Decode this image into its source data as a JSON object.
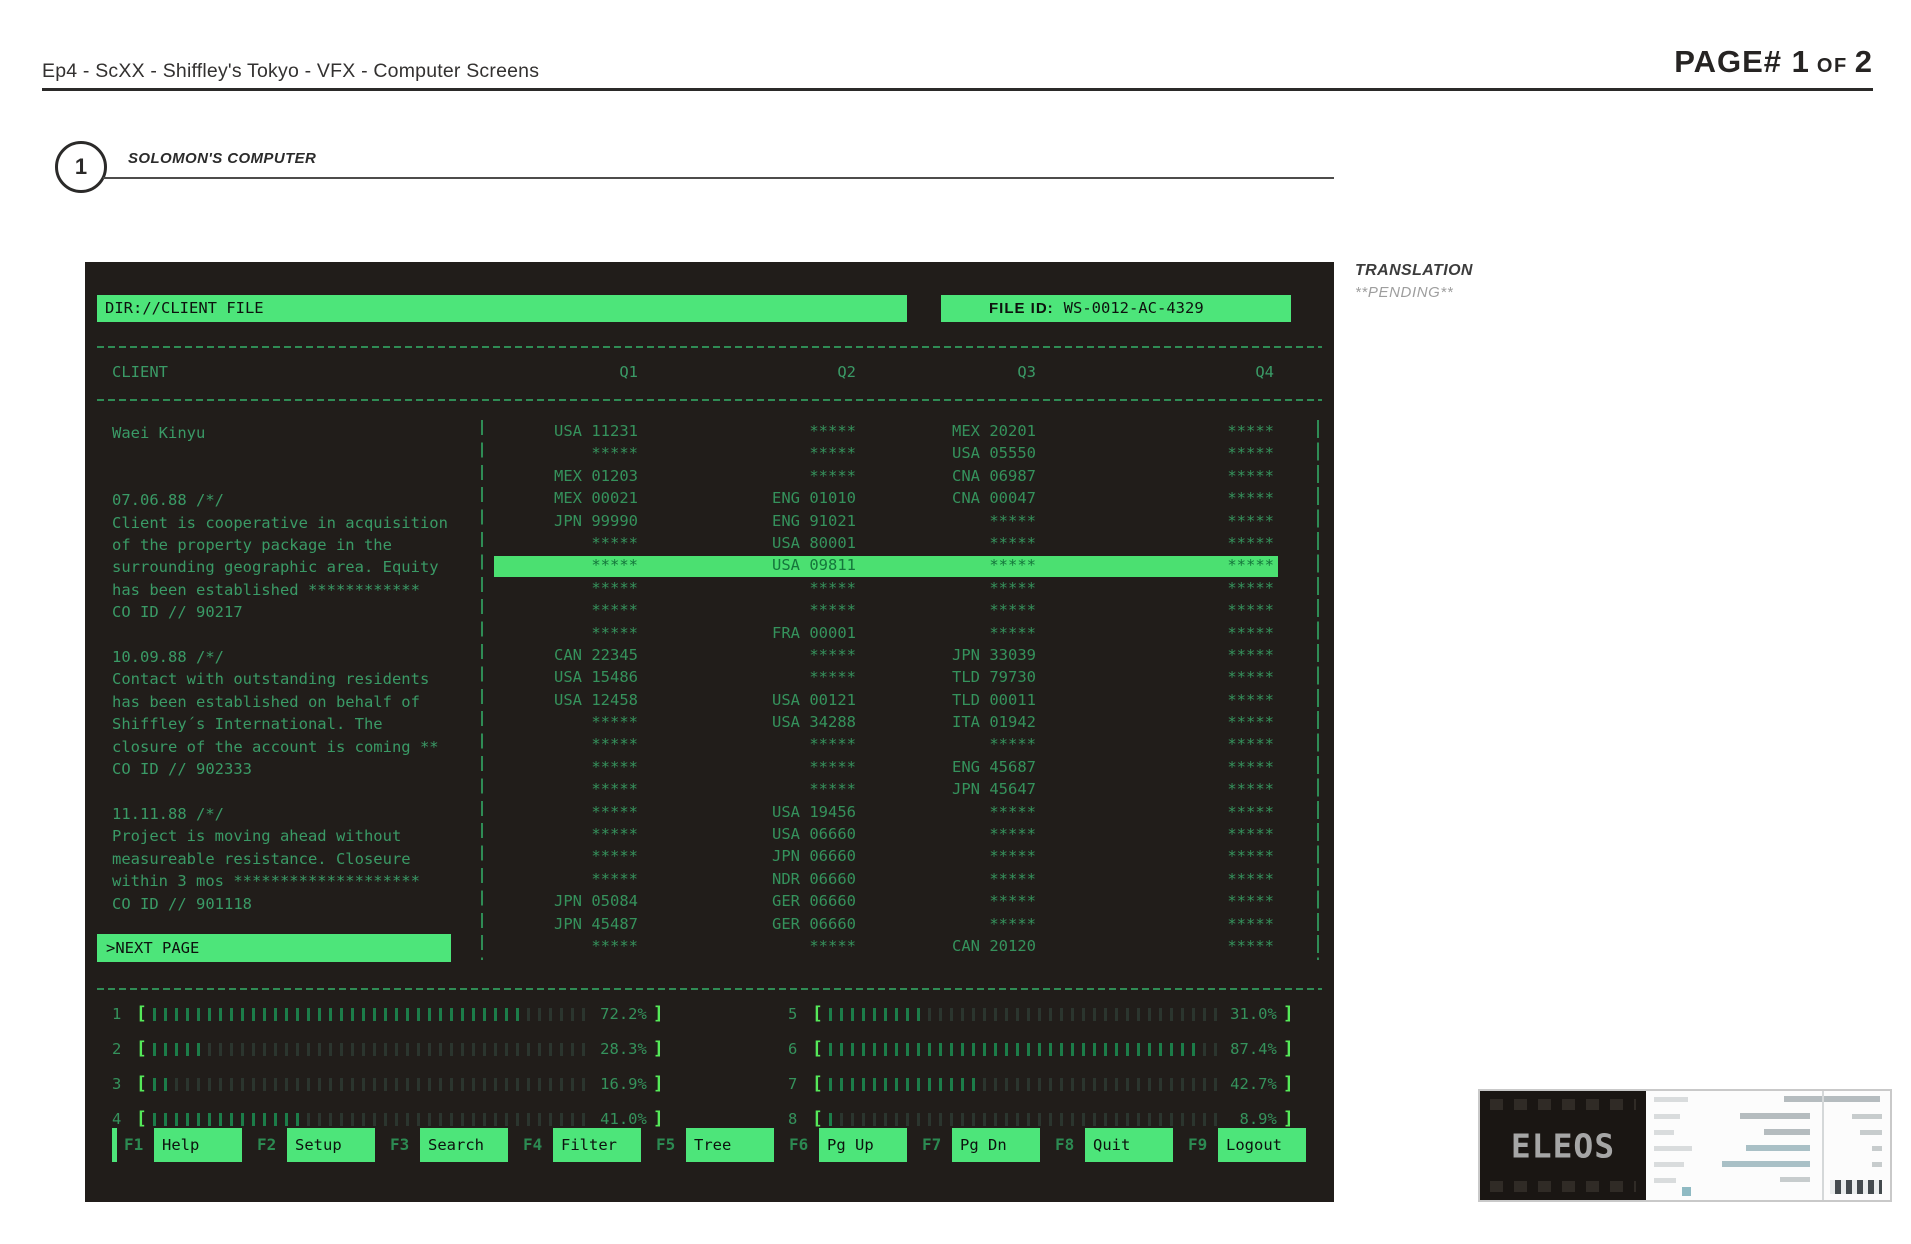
{
  "header": {
    "title": "Ep4 - ScXX - Shiffley's Tokyo - VFX - Computer Screens",
    "page_label": "PAGE# ",
    "page_current": "1",
    "page_of_word": " OF ",
    "page_total": "2"
  },
  "scene": {
    "number": "1",
    "label": "SOLOMON'S COMPUTER"
  },
  "translation": {
    "title": "TRANSLATION",
    "status": "**PENDING**"
  },
  "screen": {
    "dir_label": "DIR://CLIENT FILE",
    "file_id_label": "FILE ID:",
    "file_id_value": "WS-0012-AC-4329",
    "bracket_open": "[",
    "bracket_close": "]",
    "table": {
      "client_header": "CLIENT",
      "quarter_headers": [
        "Q1",
        "Q2",
        "Q3",
        "Q4"
      ],
      "highlight_row_index": 6,
      "rows": [
        [
          "USA 11231",
          "*****",
          "MEX 20201",
          "*****"
        ],
        [
          "*****",
          "*****",
          "USA 05550",
          "*****"
        ],
        [
          "MEX 01203",
          "*****",
          "CNA 06987",
          "*****"
        ],
        [
          "MEX 00021",
          "ENG 01010",
          "CNA 00047",
          "*****"
        ],
        [
          "JPN 99990",
          "ENG 91021",
          "*****",
          "*****"
        ],
        [
          "*****",
          "USA 80001",
          "*****",
          "*****"
        ],
        [
          "*****",
          "USA 09811",
          "*****",
          "*****"
        ],
        [
          "*****",
          "*****",
          "*****",
          "*****"
        ],
        [
          "*****",
          "*****",
          "*****",
          "*****"
        ],
        [
          "*****",
          "FRA 00001",
          "*****",
          "*****"
        ],
        [
          "CAN 22345",
          "*****",
          "JPN 33039",
          "*****"
        ],
        [
          "USA 15486",
          "*****",
          "TLD 79730",
          "*****"
        ],
        [
          "USA 12458",
          "USA 00121",
          "TLD 00011",
          "*****"
        ],
        [
          "*****",
          "USA 34288",
          "ITA 01942",
          "*****"
        ],
        [
          "*****",
          "*****",
          "*****",
          "*****"
        ],
        [
          "*****",
          "*****",
          "ENG 45687",
          "*****"
        ],
        [
          "*****",
          "*****",
          "JPN 45647",
          "*****"
        ],
        [
          "*****",
          "USA 19456",
          "*****",
          "*****"
        ],
        [
          "*****",
          "USA 06660",
          "*****",
          "*****"
        ],
        [
          "*****",
          "JPN 06660",
          "*****",
          "*****"
        ],
        [
          "*****",
          "NDR 06660",
          "*****",
          "*****"
        ],
        [
          "JPN 05084",
          "GER 06660",
          "*****",
          "*****"
        ],
        [
          "JPN 45487",
          "GER 06660",
          "*****",
          "*****"
        ],
        [
          "*****",
          "*****",
          "CAN 20120",
          "*****"
        ]
      ]
    },
    "notes": {
      "client_name": "Waei Kinyu",
      "entries": [
        {
          "date": "07.06.88 /*/",
          "lines": [
            "Client is cooperative in acquisition",
            "of the property package in the",
            "surrounding geographic area. Equity",
            "has been established ************",
            "CO ID // 90217"
          ]
        },
        {
          "date": "10.09.88 /*/",
          "lines": [
            "Contact with outstanding residents",
            "has been established on behalf of",
            "Shiffley´s International. The",
            "closure of the account is coming **",
            "CO ID // 902333"
          ]
        },
        {
          "date": "11.11.88 /*/",
          "lines": [
            "Project is moving ahead without",
            "measureable resistance. Closeure",
            "within 3 mos ********************",
            "CO ID // 901118"
          ]
        }
      ],
      "next_page_label": ">NEXT PAGE"
    },
    "bars": [
      {
        "id": "1",
        "filled": 34,
        "total": 40,
        "pct": "72.2%"
      },
      {
        "id": "2",
        "filled": 5,
        "total": 40,
        "pct": "28.3%"
      },
      {
        "id": "3",
        "filled": 2,
        "total": 40,
        "pct": "16.9%"
      },
      {
        "id": "4",
        "filled": 14,
        "total": 40,
        "pct": "41.0%"
      },
      {
        "id": "5",
        "filled": 9,
        "total": 36,
        "pct": "31.0%"
      },
      {
        "id": "6",
        "filled": 34,
        "total": 36,
        "pct": "87.4%"
      },
      {
        "id": "7",
        "filled": 14,
        "total": 36,
        "pct": "42.7%"
      },
      {
        "id": "8",
        "filled": 1,
        "total": 36,
        "pct": "8.9%"
      }
    ],
    "fn_keys": [
      {
        "key": "F1",
        "label": "Help"
      },
      {
        "key": "F2",
        "label": "Setup"
      },
      {
        "key": "F3",
        "label": "Search"
      },
      {
        "key": "F4",
        "label": "Filter"
      },
      {
        "key": "F5",
        "label": "Tree"
      },
      {
        "key": "F6",
        "label": "Pg Up"
      },
      {
        "key": "F7",
        "label": "Pg Dn"
      },
      {
        "key": "F8",
        "label": "Quit"
      },
      {
        "key": "F9",
        "label": "Logout"
      }
    ]
  },
  "thumbnail": {
    "logo_text": "ELEOS"
  },
  "colors": {
    "accent_green": "#4de57a",
    "dim_green": "#35925c",
    "bracket_green": "#55e959",
    "screen_bg": "#211d1a",
    "highlight_row_bg": "#4be071"
  }
}
